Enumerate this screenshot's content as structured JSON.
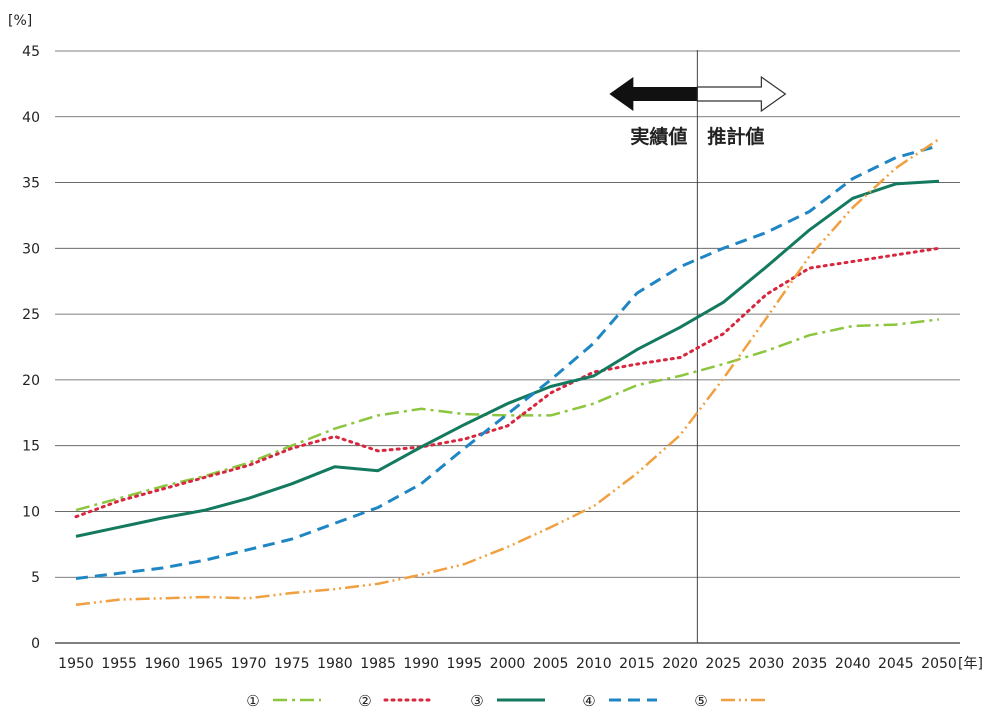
{
  "chart_data": {
    "type": "line",
    "ylabel": "[%]",
    "xlabel": "[年]",
    "ylim": [
      0,
      45
    ],
    "yticks": [
      0,
      5,
      10,
      15,
      20,
      25,
      30,
      35,
      40,
      45
    ],
    "x": [
      1950,
      1955,
      1960,
      1965,
      1970,
      1975,
      1980,
      1985,
      1990,
      1995,
      2000,
      2005,
      2010,
      2015,
      2020,
      2025,
      2030,
      2035,
      2040,
      2045,
      2050
    ],
    "grid": "horizontal",
    "divider_year": 2022,
    "region_labels": {
      "actual": "実績値",
      "projected": "推計値"
    },
    "legend_position": "bottom",
    "series": [
      {
        "name": "①",
        "color": "#8cc63f",
        "dash": "14 5 3 5",
        "width": 2.5,
        "values": [
          10.1,
          11.0,
          11.9,
          12.7,
          13.7,
          15.0,
          16.3,
          17.3,
          17.8,
          17.4,
          17.3,
          17.3,
          18.2,
          19.6,
          20.3,
          21.2,
          22.2,
          23.4,
          24.1,
          24.2,
          24.6
        ]
      },
      {
        "name": "②",
        "color": "#d7263d",
        "dash": "2 5",
        "width": 3,
        "values": [
          9.6,
          10.8,
          11.7,
          12.6,
          13.5,
          14.8,
          15.7,
          14.6,
          14.9,
          15.5,
          16.5,
          19.0,
          20.6,
          21.2,
          21.7,
          23.5,
          26.5,
          28.5,
          29.0,
          29.5,
          30.0
        ]
      },
      {
        "name": "③",
        "color": "#137a5f",
        "dash": "",
        "width": 3,
        "values": [
          8.1,
          8.8,
          9.5,
          10.1,
          11.0,
          12.1,
          13.4,
          13.1,
          14.9,
          16.6,
          18.2,
          19.5,
          20.3,
          22.3,
          24.0,
          25.9,
          28.6,
          31.4,
          33.8,
          34.9,
          35.1
        ]
      },
      {
        "name": "④",
        "color": "#1f86c4",
        "dash": "12 7",
        "width": 3,
        "values": [
          4.9,
          5.3,
          5.7,
          6.3,
          7.1,
          7.9,
          9.1,
          10.3,
          12.1,
          14.8,
          17.4,
          20.0,
          22.8,
          26.6,
          28.6,
          30.0,
          31.2,
          32.8,
          35.3,
          36.9,
          37.8
        ]
      },
      {
        "name": "⑤",
        "color": "#f0a040",
        "dash": "14 4 2 4 2 4",
        "width": 2.5,
        "values": [
          2.9,
          3.3,
          3.4,
          3.5,
          3.4,
          3.8,
          4.1,
          4.5,
          5.2,
          6.0,
          7.3,
          8.8,
          10.4,
          12.9,
          15.8,
          20.1,
          24.7,
          29.4,
          33.1,
          36.1,
          38.3
        ]
      }
    ]
  }
}
